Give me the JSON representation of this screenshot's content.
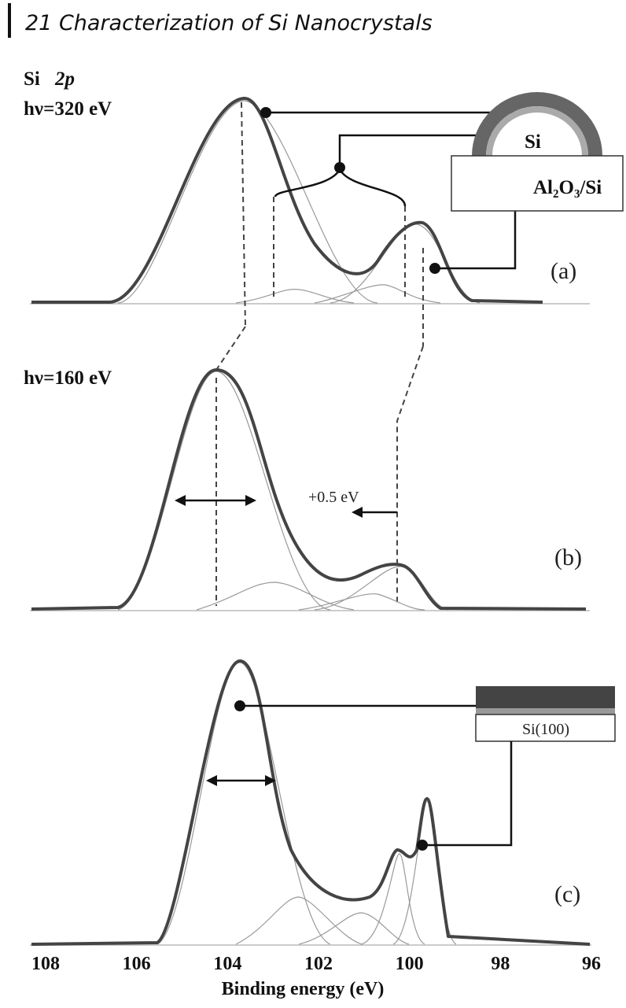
{
  "header": {
    "title": "21 Characterization of Si Nanocrystals"
  },
  "figure": {
    "spectrum_label": {
      "element": "Si",
      "orbital": "2p"
    },
    "panels": [
      {
        "photon_energy": "hν=320 eV",
        "label": "(a)",
        "inset": {
          "top": "Si",
          "substrate": "Al₂O₃/Si"
        }
      },
      {
        "photon_energy": "hν=160 eV",
        "label": "(b)",
        "shift": "+0.5 eV"
      },
      {
        "label": "(c)",
        "inset": {
          "substrate": "Si(100)"
        }
      }
    ],
    "x_axis": {
      "title": "Binding energy (eV)",
      "ticks": [
        108,
        106,
        104,
        102,
        100,
        98,
        96
      ]
    }
  }
}
